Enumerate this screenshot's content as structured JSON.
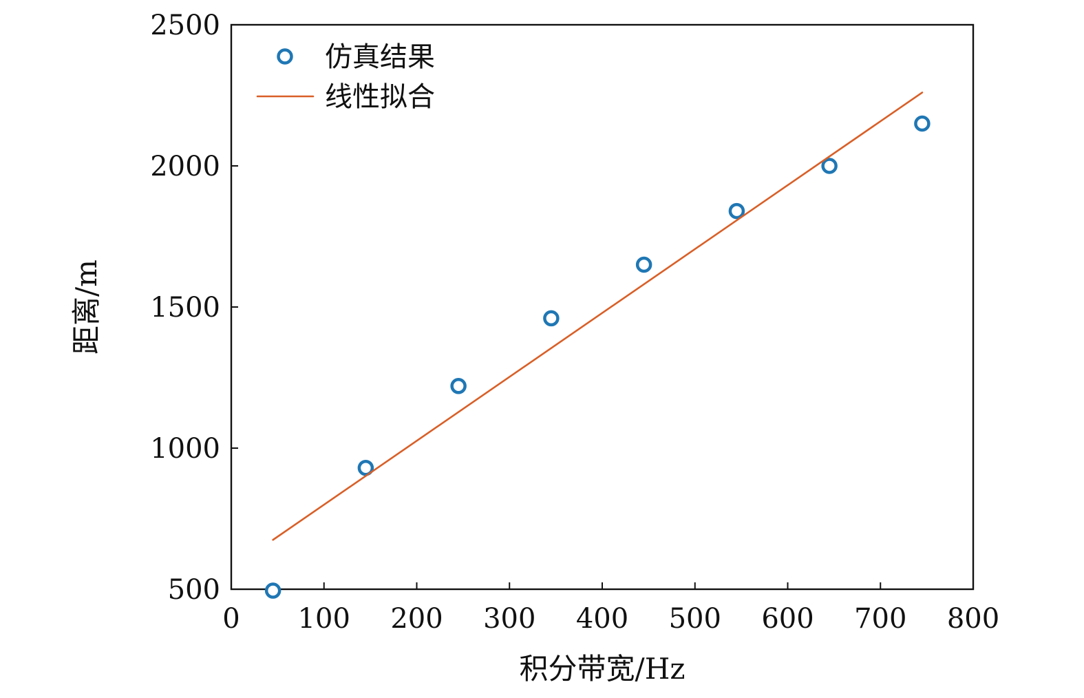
{
  "chart_data": {
    "type": "scatter",
    "title": "",
    "xlabel": "积分带宽/Hz",
    "ylabel": "距离/m",
    "xlim": [
      0,
      800
    ],
    "ylim": [
      500,
      2500
    ],
    "x_ticks": [
      0,
      100,
      200,
      300,
      400,
      500,
      600,
      700,
      800
    ],
    "y_ticks": [
      500,
      1000,
      1500,
      2000,
      2500
    ],
    "x_tick_labels": [
      "0",
      "100",
      "200",
      "300",
      "400",
      "500",
      "600",
      "700",
      "800"
    ],
    "y_tick_labels": [
      "500",
      "1000",
      "1500",
      "2000",
      "2500"
    ],
    "grid": false,
    "legend_position": "top-left",
    "series": [
      {
        "name": "仿真结果",
        "kind": "scatter",
        "marker": "circle-open",
        "color": "#1f77b4",
        "x": [
          45,
          145,
          245,
          345,
          445,
          545,
          645,
          745
        ],
        "y": [
          495,
          930,
          1220,
          1460,
          1650,
          1840,
          2000,
          2150
        ]
      },
      {
        "name": "线性拟合",
        "kind": "line",
        "color": "#d95f27",
        "x": [
          45,
          745
        ],
        "y": [
          675,
          2260
        ]
      }
    ]
  }
}
